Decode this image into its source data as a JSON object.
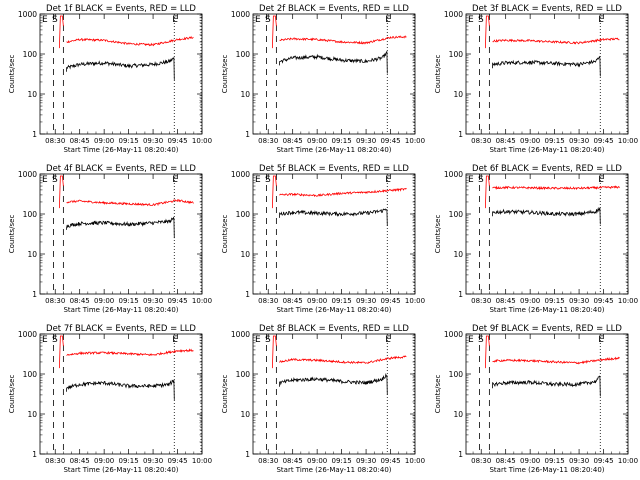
{
  "x_tick_labels": [
    "08:30",
    "08:45",
    "09:00",
    "09:15",
    "09:30",
    "09:45",
    "10:00"
  ],
  "y_tick_labels": [
    "1",
    "10",
    "100",
    "1000"
  ],
  "ylabel": "Counts/sec",
  "xlabel": "Start Time (26-May-11 08:20:40)",
  "marker_labels": {
    "start": "S",
    "end": "E"
  },
  "colors": {
    "events": "#000000",
    "lld": "#ff0000",
    "axes": "#000000",
    "background": "#ffffff"
  },
  "chart_data": [
    {
      "type": "line",
      "title": "Det 1f BLACK = Events, RED = LLD",
      "panel": 1,
      "x_range": [
        "08:20:40",
        "10:00"
      ],
      "ylim": [
        1,
        1000
      ],
      "yscale": "log",
      "markers": {
        "S_start": "08:29:00",
        "S_end": "08:35:00",
        "E": "09:43:00"
      },
      "series": [
        {
          "name": "BLACK = Events",
          "color": "#000000",
          "times": [
            "08:37",
            "08:45",
            "09:00",
            "09:15",
            "09:30",
            "09:40",
            "09:43"
          ],
          "values": [
            45,
            55,
            60,
            50,
            55,
            65,
            80
          ]
        },
        {
          "name": "RED = LLD",
          "color": "#ff0000",
          "times": [
            "08:37",
            "08:45",
            "09:00",
            "09:15",
            "09:30",
            "09:45",
            "09:55"
          ],
          "values": [
            200,
            230,
            220,
            180,
            170,
            230,
            260
          ]
        }
      ]
    },
    {
      "type": "line",
      "title": "Det 2f BLACK = Events, RED = LLD",
      "panel": 2,
      "x_range": [
        "08:20:40",
        "10:00"
      ],
      "ylim": [
        1,
        1000
      ],
      "yscale": "log",
      "markers": {
        "S_start": "08:29:00",
        "S_end": "08:35:00",
        "E": "09:43:00"
      },
      "series": [
        {
          "name": "BLACK = Events",
          "color": "#000000",
          "times": [
            "08:37",
            "08:45",
            "09:00",
            "09:15",
            "09:30",
            "09:40",
            "09:43"
          ],
          "values": [
            65,
            80,
            85,
            70,
            65,
            80,
            110
          ]
        },
        {
          "name": "RED = LLD",
          "color": "#ff0000",
          "times": [
            "08:37",
            "08:45",
            "09:00",
            "09:15",
            "09:30",
            "09:45",
            "09:55"
          ],
          "values": [
            220,
            240,
            230,
            200,
            190,
            260,
            270
          ]
        }
      ]
    },
    {
      "type": "line",
      "title": "Det 3f BLACK = Events, RED = LLD",
      "panel": 3,
      "x_range": [
        "08:20:40",
        "10:00"
      ],
      "ylim": [
        1,
        1000
      ],
      "yscale": "log",
      "markers": {
        "S_start": "08:29:00",
        "S_end": "08:35:00",
        "E": "09:43:00"
      },
      "series": [
        {
          "name": "BLACK = Events",
          "color": "#000000",
          "times": [
            "08:37",
            "08:45",
            "09:00",
            "09:15",
            "09:30",
            "09:40",
            "09:43"
          ],
          "values": [
            55,
            60,
            62,
            58,
            55,
            65,
            85
          ]
        },
        {
          "name": "RED = LLD",
          "color": "#ff0000",
          "times": [
            "08:37",
            "08:45",
            "09:00",
            "09:15",
            "09:30",
            "09:45",
            "09:55"
          ],
          "values": [
            210,
            220,
            215,
            200,
            190,
            230,
            240
          ]
        }
      ]
    },
    {
      "type": "line",
      "title": "Det 4f BLACK = Events, RED = LLD",
      "panel": 4,
      "x_range": [
        "08:20:40",
        "10:00"
      ],
      "ylim": [
        1,
        1000
      ],
      "yscale": "log",
      "markers": {
        "S_start": "08:29:00",
        "S_end": "08:35:00",
        "E": "09:43:00"
      },
      "series": [
        {
          "name": "BLACK = Events",
          "color": "#000000",
          "times": [
            "08:37",
            "08:45",
            "09:00",
            "09:15",
            "09:30",
            "09:40",
            "09:43"
          ],
          "values": [
            50,
            58,
            60,
            55,
            60,
            65,
            80
          ]
        },
        {
          "name": "RED = LLD",
          "color": "#ff0000",
          "times": [
            "08:37",
            "08:45",
            "09:00",
            "09:15",
            "09:30",
            "09:45",
            "09:55"
          ],
          "values": [
            200,
            210,
            190,
            180,
            170,
            220,
            190
          ]
        }
      ]
    },
    {
      "type": "line",
      "title": "Det 5f BLACK = Events, RED = LLD",
      "panel": 5,
      "x_range": [
        "08:20:40",
        "10:00"
      ],
      "ylim": [
        1,
        1000
      ],
      "yscale": "log",
      "markers": {
        "S_start": "08:29:00",
        "S_end": "08:35:00",
        "E": "09:43:00"
      },
      "series": [
        {
          "name": "BLACK = Events",
          "color": "#000000",
          "times": [
            "08:37",
            "08:45",
            "09:00",
            "09:15",
            "09:30",
            "09:40",
            "09:43"
          ],
          "values": [
            100,
            110,
            105,
            100,
            105,
            120,
            140
          ]
        },
        {
          "name": "RED = LLD",
          "color": "#ff0000",
          "times": [
            "08:37",
            "08:45",
            "09:00",
            "09:15",
            "09:30",
            "09:45",
            "09:55"
          ],
          "values": [
            300,
            310,
            290,
            330,
            350,
            390,
            420
          ]
        }
      ]
    },
    {
      "type": "line",
      "title": "Det 6f BLACK = Events, RED = LLD",
      "panel": 6,
      "x_range": [
        "08:20:40",
        "10:00"
      ],
      "ylim": [
        1,
        1000
      ],
      "yscale": "log",
      "markers": {
        "S_start": "08:29:00",
        "S_end": "08:35:00",
        "E": "09:43:00"
      },
      "series": [
        {
          "name": "BLACK = Events",
          "color": "#000000",
          "times": [
            "08:37",
            "08:45",
            "09:00",
            "09:15",
            "09:30",
            "09:40",
            "09:43"
          ],
          "values": [
            110,
            115,
            110,
            100,
            100,
            115,
            140
          ]
        },
        {
          "name": "RED = LLD",
          "color": "#ff0000",
          "times": [
            "08:37",
            "08:45",
            "09:00",
            "09:15",
            "09:30",
            "09:45",
            "09:55"
          ],
          "values": [
            450,
            460,
            450,
            440,
            440,
            460,
            470
          ]
        }
      ]
    },
    {
      "type": "line",
      "title": "Det 7f BLACK = Events, RED = LLD",
      "panel": 7,
      "x_range": [
        "08:20:40",
        "10:00"
      ],
      "ylim": [
        1,
        1000
      ],
      "yscale": "log",
      "markers": {
        "S_start": "08:29:00",
        "S_end": "08:35:00",
        "E": "09:43:00"
      },
      "series": [
        {
          "name": "BLACK = Events",
          "color": "#000000",
          "times": [
            "08:37",
            "08:45",
            "09:00",
            "09:15",
            "09:30",
            "09:40",
            "09:43"
          ],
          "values": [
            45,
            55,
            60,
            50,
            50,
            55,
            70
          ]
        },
        {
          "name": "RED = LLD",
          "color": "#ff0000",
          "times": [
            "08:37",
            "08:45",
            "09:00",
            "09:15",
            "09:30",
            "09:45",
            "09:55"
          ],
          "values": [
            300,
            330,
            340,
            320,
            300,
            380,
            390
          ]
        }
      ]
    },
    {
      "type": "line",
      "title": "Det 8f BLACK = Events, RED = LLD",
      "panel": 8,
      "x_range": [
        "08:20:40",
        "10:00"
      ],
      "ylim": [
        1,
        1000
      ],
      "yscale": "log",
      "markers": {
        "S_start": "08:29:00",
        "S_end": "08:35:00",
        "E": "09:43:00"
      },
      "series": [
        {
          "name": "BLACK = Events",
          "color": "#000000",
          "times": [
            "08:37",
            "08:45",
            "09:00",
            "09:15",
            "09:30",
            "09:40",
            "09:43"
          ],
          "values": [
            60,
            70,
            75,
            65,
            60,
            75,
            100
          ]
        },
        {
          "name": "RED = LLD",
          "color": "#ff0000",
          "times": [
            "08:37",
            "08:45",
            "09:00",
            "09:15",
            "09:30",
            "09:45",
            "09:55"
          ],
          "values": [
            200,
            230,
            220,
            200,
            190,
            250,
            270
          ]
        }
      ]
    },
    {
      "type": "line",
      "title": "Det 9f BLACK = Events, RED = LLD",
      "panel": 9,
      "x_range": [
        "08:20:40",
        "10:00"
      ],
      "ylim": [
        1,
        1000
      ],
      "yscale": "log",
      "markers": {
        "S_start": "08:29:00",
        "S_end": "08:35:00",
        "E": "09:43:00"
      },
      "series": [
        {
          "name": "BLACK = Events",
          "color": "#000000",
          "times": [
            "08:37",
            "08:45",
            "09:00",
            "09:15",
            "09:30",
            "09:40",
            "09:43"
          ],
          "values": [
            55,
            60,
            62,
            55,
            55,
            65,
            85
          ]
        },
        {
          "name": "RED = LLD",
          "color": "#ff0000",
          "times": [
            "08:37",
            "08:45",
            "09:00",
            "09:15",
            "09:30",
            "09:45",
            "09:55"
          ],
          "values": [
            210,
            220,
            215,
            200,
            190,
            230,
            250
          ]
        }
      ]
    }
  ]
}
